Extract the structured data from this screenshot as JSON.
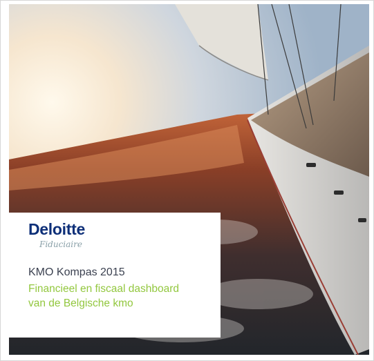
{
  "card": {
    "brand": "Deloitte",
    "brand_subtitle": "Fiduciaire",
    "title": "KMO Kompas 2015",
    "subtitle_lines": [
      "Financieel en fiscaal dashboard",
      "van de Belgische kmo"
    ]
  }
}
